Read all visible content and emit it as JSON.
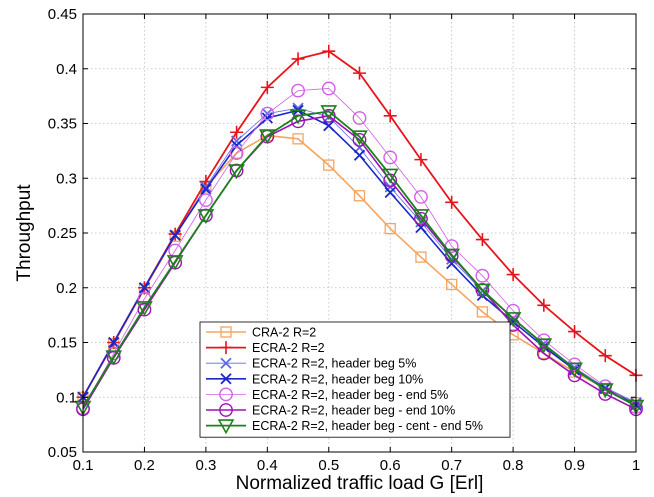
{
  "chart_data": {
    "type": "line",
    "xlabel": "Normalized traffic load G [Erl]",
    "ylabel": "Throughput",
    "xlim": [
      0.1,
      1
    ],
    "ylim": [
      0.05,
      0.45
    ],
    "xticks": [
      "0.1",
      "0.2",
      "0.3",
      "0.4",
      "0.5",
      "0.6",
      "0.7",
      "0.8",
      "0.9",
      "1"
    ],
    "yticks": [
      "0.05",
      "0.1",
      "0.15",
      "0.2",
      "0.25",
      "0.3",
      "0.35",
      "0.4",
      "0.45"
    ],
    "grid": true,
    "legend_position": "bottom-center",
    "x": [
      0.1,
      0.15,
      0.2,
      0.25,
      0.3,
      0.35,
      0.4,
      0.45,
      0.5,
      0.55,
      0.6,
      0.65,
      0.7,
      0.75,
      0.8,
      0.85,
      0.9,
      0.95,
      1.0
    ],
    "series": [
      {
        "name": "CRA-2 R=2",
        "color": "#f5a55f",
        "marker": "square",
        "values": [
          0.1,
          0.149,
          0.199,
          0.247,
          0.292,
          0.323,
          0.339,
          0.336,
          0.312,
          0.284,
          0.254,
          0.228,
          0.203,
          0.178,
          0.157,
          0.14,
          0.123,
          0.108,
          0.095
        ]
      },
      {
        "name": "ECRA-2 R=2",
        "color": "#e8141b",
        "marker": "plus",
        "values": [
          0.1,
          0.15,
          0.2,
          0.249,
          0.297,
          0.342,
          0.383,
          0.409,
          0.416,
          0.396,
          0.357,
          0.317,
          0.278,
          0.244,
          0.212,
          0.184,
          0.16,
          0.138,
          0.12
        ]
      },
      {
        "name": "ECRA-2 R=2, header beg 5%",
        "color": "#6068ea",
        "marker": "x",
        "values": [
          0.1,
          0.15,
          0.2,
          0.248,
          0.292,
          0.334,
          0.359,
          0.364,
          0.356,
          0.328,
          0.292,
          0.26,
          0.226,
          0.197,
          0.172,
          0.149,
          0.127,
          0.109,
          0.095
        ]
      },
      {
        "name": "ECRA-2 R=2, header beg 10%",
        "color": "#1a27c9",
        "marker": "x",
        "values": [
          0.1,
          0.15,
          0.2,
          0.248,
          0.29,
          0.33,
          0.355,
          0.362,
          0.348,
          0.321,
          0.287,
          0.255,
          0.222,
          0.193,
          0.169,
          0.146,
          0.125,
          0.108,
          0.093
        ]
      },
      {
        "name": "ECRA-2 R=2, header beg - end 5%",
        "color": "#d060e6",
        "marker": "circle",
        "values": [
          0.09,
          0.14,
          0.19,
          0.234,
          0.28,
          0.323,
          0.359,
          0.38,
          0.382,
          0.355,
          0.319,
          0.283,
          0.238,
          0.211,
          0.179,
          0.152,
          0.13,
          0.11,
          0.091
        ]
      },
      {
        "name": "ECRA-2 R=2, header beg - end 10%",
        "color": "#9b12b4",
        "marker": "circle",
        "values": [
          0.089,
          0.136,
          0.18,
          0.223,
          0.266,
          0.307,
          0.338,
          0.352,
          0.357,
          0.335,
          0.298,
          0.263,
          0.229,
          0.198,
          0.166,
          0.14,
          0.12,
          0.103,
          0.089
        ]
      },
      {
        "name": "ECRA-2 R=2, header beg - cent - end 5%",
        "color": "#1e7f1e",
        "marker": "triangle-down",
        "values": [
          0.091,
          0.137,
          0.182,
          0.224,
          0.266,
          0.307,
          0.339,
          0.357,
          0.361,
          0.338,
          0.303,
          0.266,
          0.23,
          0.198,
          0.172,
          0.148,
          0.126,
          0.107,
          0.092
        ]
      }
    ]
  }
}
